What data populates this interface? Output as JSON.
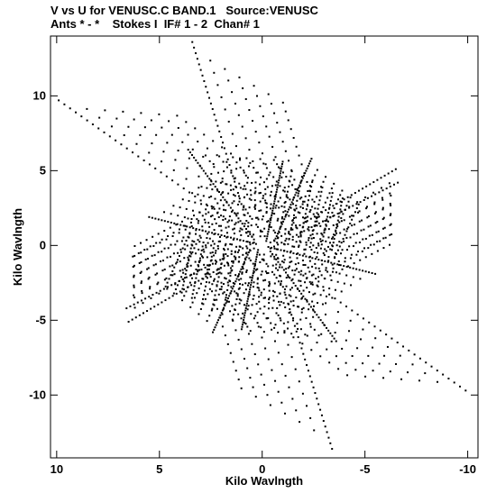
{
  "header": {
    "line1": "V vs U for VENUSC.C BAND.1   Source:VENUSC",
    "line2": "Ants * - *    Stokes I  IF# 1 - 2  Chan# 1"
  },
  "chart_data": {
    "type": "scatter",
    "title": "V vs U for VENUSC.C BAND.1   Source:VENUSC",
    "subtitle": "Ants * - *    Stokes I  IF# 1 - 2  Chan# 1",
    "xlabel": "Kilo Wavlngth",
    "ylabel": "Kilo Wavlngth",
    "xlim": [
      10.3,
      -10.5
    ],
    "ylim": [
      -14.2,
      14.0
    ],
    "x_reversed": true,
    "xticks": [
      10,
      5,
      0,
      -5,
      -10
    ],
    "xtick_labels": [
      "10",
      "5",
      "0",
      "-5",
      "-10"
    ],
    "yticks": [
      -10,
      -5,
      0,
      5,
      10
    ],
    "ytick_labels": [
      "-10",
      "-5",
      "0",
      "5",
      "10"
    ],
    "grid": false,
    "legend": "none",
    "marker_color": "#000000",
    "series": [
      {
        "description": "u-v coverage tracks (conjugate-symmetric)",
        "arms": [
          {
            "u_start": 0.4,
            "v_start": 0.4,
            "u_end": 3.6,
            "v_end": 6.4
          },
          {
            "u_start": 0.3,
            "v_start": 0.1,
            "u_end": 5.5,
            "v_end": 1.9
          },
          {
            "u_start": -0.2,
            "v_start": 0.3,
            "u_end": -1.0,
            "v_end": 5.6
          },
          {
            "u_start": 0.5,
            "v_start": 0.6,
            "u_end": 9.9,
            "v_end": 9.7
          },
          {
            "u_start": 0.6,
            "v_start": 0.9,
            "u_end": 3.4,
            "v_end": 13.6
          },
          {
            "u_start": -0.6,
            "v_start": 0.3,
            "u_end": -2.4,
            "v_end": 5.8
          },
          {
            "u_start": 0.4,
            "v_start": 0.2,
            "u_end": 6.6,
            "v_end": -4.2
          },
          {
            "u_start": -0.4,
            "v_start": 0.2,
            "u_end": -6.5,
            "v_end": 5.1
          }
        ]
      }
    ]
  }
}
